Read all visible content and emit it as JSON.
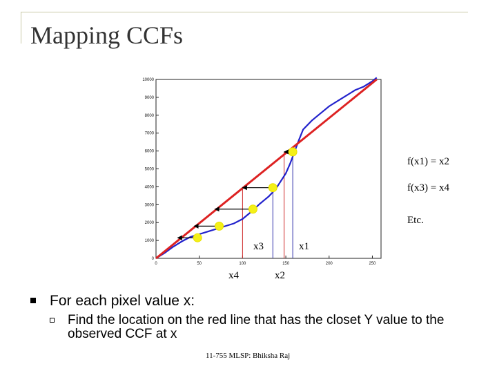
{
  "slide": {
    "title": "Mapping CCFs",
    "footer": "11-755 MLSP: Bhiksha Raj"
  },
  "annotations": {
    "f1": "f(x1) = x2",
    "f3": "f(x3) = x4",
    "etc": "Etc.",
    "x1": "x1",
    "x2": "x2",
    "x3": "x3",
    "x4": "x4"
  },
  "bullets": [
    {
      "text": "For each pixel value x:"
    },
    {
      "text": "Find the location on the red line that has the closet Y value to the observed CCF at x"
    }
  ],
  "chart_data": {
    "type": "line",
    "xlim": [
      0,
      260
    ],
    "ylim": [
      0,
      10000
    ],
    "x_ticks": [
      0,
      50,
      100,
      150,
      200,
      250
    ],
    "y_ticks": [
      0,
      1000,
      2000,
      3000,
      4000,
      5000,
      6000,
      7000,
      8000,
      9000,
      10000
    ],
    "series": [
      {
        "color": "#2222cc",
        "x": [
          0,
          10,
          20,
          30,
          40,
          50,
          60,
          70,
          80,
          90,
          100,
          110,
          120,
          130,
          135,
          140,
          150,
          155,
          160,
          165,
          170,
          180,
          190,
          200,
          210,
          220,
          230,
          240,
          250,
          255
        ],
        "y": [
          0,
          300,
          650,
          950,
          1200,
          1350,
          1500,
          1650,
          1800,
          1950,
          2200,
          2600,
          3050,
          3450,
          3700,
          4000,
          4750,
          5300,
          5950,
          6600,
          7200,
          7700,
          8100,
          8500,
          8800,
          9100,
          9400,
          9600,
          9900,
          10100
        ]
      },
      {
        "color": "#dd2222",
        "x": [
          0,
          255
        ],
        "y": [
          0,
          10000
        ]
      }
    ],
    "markers": [
      {
        "x": 158,
        "y": 5950
      },
      {
        "x": 135,
        "y": 3950
      },
      {
        "x": 112,
        "y": 2750
      },
      {
        "x": 73,
        "y": 1800
      },
      {
        "x": 48,
        "y": 1150
      }
    ],
    "arrows": [
      {
        "from_x": 158,
        "to_x": 148,
        "y": 5950
      },
      {
        "from_x": 135,
        "to_x": 100,
        "y": 3950
      },
      {
        "from_x": 112,
        "to_x": 68,
        "y": 2750
      },
      {
        "from_x": 73,
        "to_x": 44,
        "y": 1800
      },
      {
        "from_x": 48,
        "to_x": 25,
        "y": 1150
      }
    ],
    "drop_lines": [
      {
        "x": 158,
        "y": 5950,
        "color": "#3333aa"
      },
      {
        "x": 148,
        "y": 5950,
        "color": "#cc2222"
      },
      {
        "x": 135,
        "y": 3950,
        "color": "#3333aa"
      },
      {
        "x": 100,
        "y": 3950,
        "color": "#cc2222"
      }
    ]
  }
}
